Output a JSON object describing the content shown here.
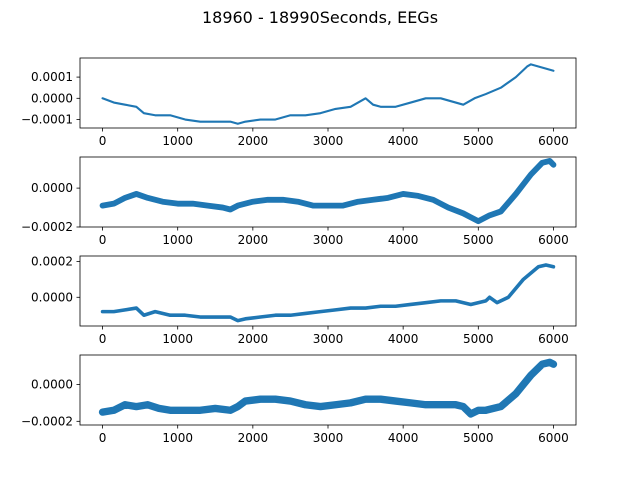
{
  "figure": {
    "suptitle": "18960 - 18990Seconds, EEGs"
  },
  "chart_data": [
    {
      "type": "line",
      "title": "",
      "xlabel": "",
      "ylabel": "",
      "xlim": [
        -300,
        6300
      ],
      "ylim": [
        -0.00014,
        0.00019
      ],
      "xticks": [
        0,
        1000,
        2000,
        3000,
        4000,
        5000,
        6000
      ],
      "xtick_labels": [
        "0",
        "1000",
        "2000",
        "3000",
        "4000",
        "5000",
        "6000"
      ],
      "yticks": [
        -0.0001,
        0.0,
        0.0001
      ],
      "ytick_labels": [
        "−0.0001",
        "0.0000",
        "0.0001"
      ],
      "grid": false,
      "series": [
        {
          "color": "#1f77b4",
          "band_width": 1e-05,
          "x": [
            0,
            150,
            300,
            450,
            550,
            700,
            900,
            1100,
            1300,
            1500,
            1700,
            1800,
            1900,
            2100,
            2300,
            2500,
            2700,
            2900,
            3100,
            3300,
            3500,
            3600,
            3700,
            3900,
            4100,
            4300,
            4500,
            4700,
            4800,
            4950,
            5100,
            5300,
            5500,
            5650,
            5700,
            5800,
            5900,
            6000
          ],
          "y": [
            0.0,
            -2e-05,
            -3e-05,
            -4e-05,
            -7e-05,
            -8e-05,
            -8e-05,
            -0.0001,
            -0.00011,
            -0.00011,
            -0.00011,
            -0.00012,
            -0.00011,
            -0.0001,
            -0.0001,
            -8e-05,
            -8e-05,
            -7e-05,
            -5e-05,
            -4e-05,
            0.0,
            -3e-05,
            -4e-05,
            -4e-05,
            -2e-05,
            0.0,
            0.0,
            -2e-05,
            -3e-05,
            0.0,
            2e-05,
            5e-05,
            0.0001,
            0.00015,
            0.00016,
            0.00015,
            0.00014,
            0.00013
          ]
        }
      ]
    },
    {
      "type": "line",
      "title": "",
      "xlabel": "",
      "ylabel": "",
      "xlim": [
        -300,
        6300
      ],
      "ylim": [
        -0.0002,
        0.00016
      ],
      "xticks": [
        0,
        1000,
        2000,
        3000,
        4000,
        5000,
        6000
      ],
      "xtick_labels": [
        "0",
        "1000",
        "2000",
        "3000",
        "4000",
        "5000",
        "6000"
      ],
      "yticks": [
        -0.0002,
        0.0
      ],
      "ytick_labels": [
        "−0.0002",
        "0.0000"
      ],
      "grid": false,
      "series": [
        {
          "color": "#1f77b4",
          "band_width": 3e-05,
          "x": [
            0,
            150,
            300,
            450,
            600,
            800,
            1000,
            1200,
            1400,
            1600,
            1700,
            1800,
            2000,
            2200,
            2400,
            2600,
            2800,
            3000,
            3200,
            3400,
            3600,
            3800,
            4000,
            4200,
            4400,
            4600,
            4800,
            4900,
            5000,
            5150,
            5300,
            5500,
            5700,
            5850,
            5950,
            6000
          ],
          "y": [
            -9e-05,
            -8e-05,
            -5e-05,
            -3e-05,
            -5e-05,
            -7e-05,
            -8e-05,
            -8e-05,
            -9e-05,
            -0.0001,
            -0.00011,
            -9e-05,
            -7e-05,
            -6e-05,
            -6e-05,
            -7e-05,
            -9e-05,
            -9e-05,
            -9e-05,
            -7e-05,
            -6e-05,
            -5e-05,
            -3e-05,
            -4e-05,
            -6e-05,
            -0.0001,
            -0.00013,
            -0.00015,
            -0.00017,
            -0.00014,
            -0.00012,
            -3e-05,
            7e-05,
            0.00013,
            0.00014,
            0.00012
          ]
        }
      ]
    },
    {
      "type": "line",
      "title": "",
      "xlabel": "",
      "ylabel": "",
      "xlim": [
        -300,
        6300
      ],
      "ylim": [
        -0.00016,
        0.00023
      ],
      "xticks": [
        0,
        1000,
        2000,
        3000,
        4000,
        5000,
        6000
      ],
      "xtick_labels": [
        "0",
        "1000",
        "2000",
        "3000",
        "4000",
        "5000",
        "6000"
      ],
      "yticks": [
        0.0,
        0.0002
      ],
      "ytick_labels": [
        "0.0000",
        "0.0002"
      ],
      "grid": false,
      "series": [
        {
          "color": "#1f77b4",
          "band_width": 2e-05,
          "x": [
            0,
            150,
            300,
            450,
            550,
            700,
            900,
            1100,
            1300,
            1500,
            1700,
            1800,
            1900,
            2100,
            2300,
            2500,
            2700,
            2900,
            3100,
            3300,
            3500,
            3700,
            3900,
            4100,
            4300,
            4500,
            4700,
            4900,
            5100,
            5150,
            5250,
            5400,
            5600,
            5800,
            5900,
            6000
          ],
          "y": [
            -8e-05,
            -8e-05,
            -7e-05,
            -6e-05,
            -0.0001,
            -8e-05,
            -0.0001,
            -0.0001,
            -0.00011,
            -0.00011,
            -0.00011,
            -0.00013,
            -0.00012,
            -0.00011,
            -0.0001,
            -0.0001,
            -9e-05,
            -8e-05,
            -7e-05,
            -6e-05,
            -6e-05,
            -5e-05,
            -5e-05,
            -4e-05,
            -3e-05,
            -2e-05,
            -2e-05,
            -4e-05,
            -2e-05,
            0.0,
            -3e-05,
            0.0,
            0.0001,
            0.00017,
            0.00018,
            0.00017
          ]
        }
      ]
    },
    {
      "type": "line",
      "title": "",
      "xlabel": "",
      "ylabel": "",
      "xlim": [
        -300,
        6300
      ],
      "ylim": [
        -0.00022,
        0.00016
      ],
      "xticks": [
        0,
        1000,
        2000,
        3000,
        4000,
        5000,
        6000
      ],
      "xtick_labels": [
        "0",
        "1000",
        "2000",
        "3000",
        "4000",
        "5000",
        "6000"
      ],
      "yticks": [
        -0.0002,
        0.0
      ],
      "ytick_labels": [
        "−0.0002",
        "0.0000"
      ],
      "grid": false,
      "series": [
        {
          "color": "#1f77b4",
          "band_width": 4e-05,
          "x": [
            0,
            150,
            300,
            450,
            600,
            750,
            900,
            1100,
            1300,
            1500,
            1700,
            1800,
            1900,
            2100,
            2300,
            2500,
            2700,
            2900,
            3100,
            3300,
            3500,
            3700,
            3900,
            4100,
            4300,
            4500,
            4700,
            4800,
            4900,
            5000,
            5100,
            5300,
            5500,
            5700,
            5850,
            5950,
            6000
          ],
          "y": [
            -0.00015,
            -0.00014,
            -0.00011,
            -0.00012,
            -0.00011,
            -0.00013,
            -0.00014,
            -0.00014,
            -0.00014,
            -0.00013,
            -0.00014,
            -0.00012,
            -9e-05,
            -8e-05,
            -8e-05,
            -9e-05,
            -0.00011,
            -0.00012,
            -0.00011,
            -0.0001,
            -8e-05,
            -8e-05,
            -9e-05,
            -0.0001,
            -0.00011,
            -0.00011,
            -0.00011,
            -0.00012,
            -0.00016,
            -0.00014,
            -0.00014,
            -0.00012,
            -5e-05,
            5e-05,
            0.00011,
            0.00012,
            0.00011
          ]
        }
      ]
    }
  ]
}
